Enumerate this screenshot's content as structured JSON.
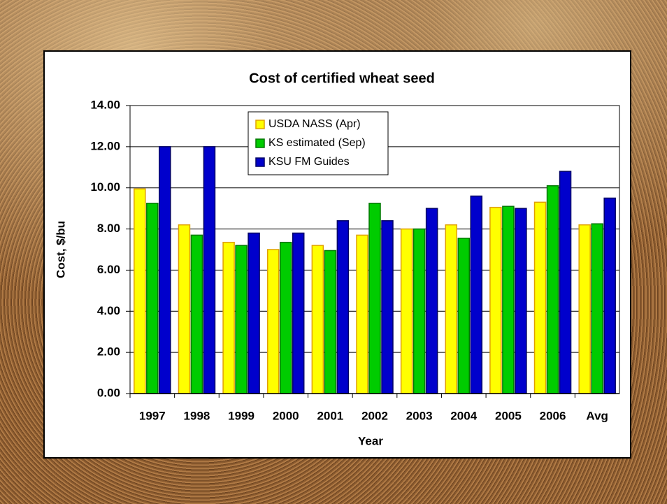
{
  "chart_data": {
    "type": "bar",
    "title": "Cost of certified wheat seed",
    "x_label": "Year",
    "y_label": "Cost, $/bu",
    "categories": [
      "1997",
      "1998",
      "1999",
      "2000",
      "2001",
      "2002",
      "2003",
      "2004",
      "2005",
      "2006",
      "Avg"
    ],
    "series": [
      {
        "name": "USDA NASS (Apr)",
        "color": "#ffff00",
        "values": [
          9.95,
          8.2,
          7.35,
          7.0,
          7.2,
          7.7,
          8.0,
          8.2,
          9.05,
          9.3,
          8.2
        ]
      },
      {
        "name": "KS estimated (Sep)",
        "color": "#00cc00",
        "values": [
          9.25,
          7.7,
          7.2,
          7.35,
          6.95,
          9.25,
          8.0,
          7.55,
          9.1,
          10.1,
          8.25
        ]
      },
      {
        "name": "KSU FM Guides",
        "color": "#0000cc",
        "values": [
          12.0,
          12.0,
          7.8,
          7.8,
          8.4,
          8.4,
          9.0,
          9.6,
          9.0,
          10.8,
          9.5
        ]
      }
    ],
    "ylim": [
      0,
      14
    ],
    "yticks": [
      {
        "value": 0,
        "label": "0.00"
      },
      {
        "value": 2,
        "label": "2.00"
      },
      {
        "value": 4,
        "label": "4.00"
      },
      {
        "value": 6,
        "label": "6.00"
      },
      {
        "value": 8,
        "label": "8.00"
      },
      {
        "value": 10,
        "label": "10.00"
      },
      {
        "value": 12,
        "label": "12.00"
      },
      {
        "value": 14,
        "label": "14.00"
      }
    ],
    "grid": true,
    "legend": "top"
  }
}
